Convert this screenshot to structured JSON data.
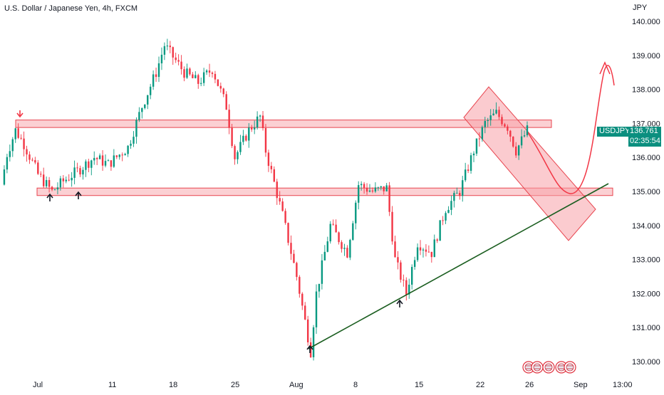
{
  "header": {
    "title": "U.S. Dollar / Japanese Yen, 4h, FXCM"
  },
  "price_axis": {
    "currency": "JPY"
  },
  "symbol_badge": {
    "symbol": "USDJPY",
    "price": "136.761",
    "countdown": "02:35:54"
  },
  "colors": {
    "up": "#089981",
    "down": "#f23645",
    "zone_fill": "#f7a1a8",
    "zone_stroke": "#e8454f",
    "trendline": "#1b5e20",
    "badge_bg": "#0b8f7f"
  },
  "chart_data": {
    "type": "candlestick",
    "title": "U.S. Dollar / Japanese Yen, 4h, FXCM",
    "ylabel": "JPY",
    "ylim": [
      129.88,
      140.48
    ],
    "y_ticks": [
      "140.000",
      "139.000",
      "138.000",
      "137.000",
      "136.000",
      "135.000",
      "134.000",
      "133.000",
      "132.000",
      "131.000",
      "130.000"
    ],
    "x_ticks": [
      "Jul",
      "11",
      "18",
      "25",
      "Aug",
      "8",
      "15",
      "22",
      "26",
      "Sep",
      "13:00"
    ],
    "last_price": 136.761,
    "price_path": [
      [
        0,
        135.2
      ],
      [
        2,
        136.1
      ],
      [
        5,
        136.8
      ],
      [
        8,
        136.4
      ],
      [
        13,
        135.5
      ],
      [
        18,
        135.0
      ],
      [
        22,
        135.3
      ],
      [
        27,
        135.6
      ],
      [
        33,
        136.0
      ],
      [
        38,
        135.8
      ],
      [
        45,
        136.3
      ],
      [
        50,
        137.5
      ],
      [
        55,
        138.5
      ],
      [
        58,
        139.3
      ],
      [
        65,
        138.5
      ],
      [
        70,
        138.2
      ],
      [
        75,
        138.6
      ],
      [
        80,
        137.5
      ],
      [
        83,
        136.0
      ],
      [
        88,
        136.8
      ],
      [
        92,
        137.2
      ],
      [
        94,
        136.2
      ],
      [
        100,
        134.3
      ],
      [
        105,
        132.5
      ],
      [
        110,
        130.3
      ],
      [
        112,
        132.0
      ],
      [
        117,
        134.0
      ],
      [
        123,
        133.2
      ],
      [
        127,
        135.2
      ],
      [
        132,
        135.0
      ],
      [
        137,
        135.1
      ],
      [
        140,
        133.0
      ],
      [
        144,
        132.0
      ],
      [
        148,
        133.5
      ],
      [
        153,
        133.2
      ],
      [
        158,
        134.5
      ],
      [
        163,
        135.0
      ],
      [
        168,
        136.2
      ],
      [
        172,
        137.0
      ],
      [
        176,
        137.3
      ],
      [
        180,
        136.9
      ],
      [
        183,
        136.2
      ],
      [
        187,
        136.8
      ]
    ],
    "zones": [
      {
        "name": "resistance",
        "price_top": 137.1,
        "price_bottom": 136.88
      },
      {
        "name": "support",
        "price_top": 135.1,
        "price_bottom": 134.88
      }
    ],
    "trendline": {
      "start": {
        "date": "Aug 2",
        "price": 130.4
      },
      "end": {
        "date": "Sep",
        "price": 135.2
      }
    },
    "marker_arrows": [
      {
        "date": "Jun 29",
        "direction": "down"
      },
      {
        "date": "Jul 1",
        "direction": "up"
      },
      {
        "date": "Jul 6",
        "direction": "up"
      },
      {
        "date": "Aug 2",
        "direction": "up"
      },
      {
        "date": "Aug 12",
        "direction": "up"
      }
    ],
    "projection": {
      "path": [
        [
          136.8
        ],
        [
          135.0
        ],
        [
          136.0
        ],
        [
          138.7
        ],
        [
          138.0
        ]
      ]
    },
    "grid": false,
    "legend": "none"
  }
}
